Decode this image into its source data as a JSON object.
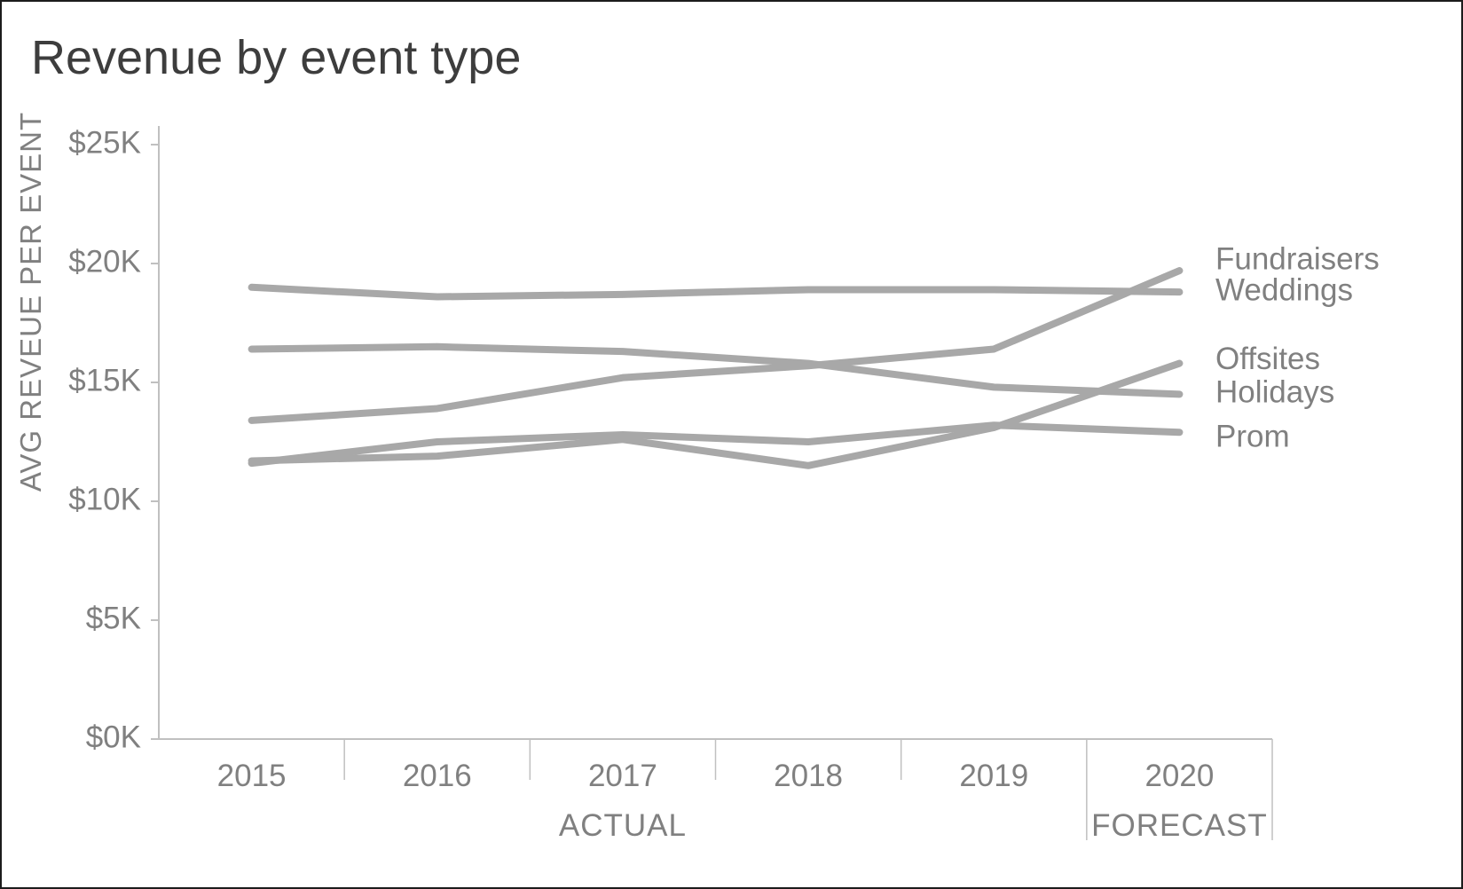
{
  "title": "Revenue by event type",
  "chart_data": {
    "type": "line",
    "title": "Revenue by event type",
    "ylabel": "AVG REVEUE PER EVENT",
    "values_unit": "USD thousands per event",
    "ylim_thousands": [
      0,
      25
    ],
    "y_ticks": [
      {
        "label": "$0K",
        "value": 0
      },
      {
        "label": "$5K",
        "value": 5
      },
      {
        "label": "$10K",
        "value": 10
      },
      {
        "label": "$15K",
        "value": 15
      },
      {
        "label": "$20K",
        "value": 20
      },
      {
        "label": "$25K",
        "value": 25
      }
    ],
    "categories": [
      "2015",
      "2016",
      "2017",
      "2018",
      "2019",
      "2020"
    ],
    "x_group_labels": [
      {
        "label": "ACTUAL",
        "start_index": 0,
        "end_index": 4
      },
      {
        "label": "FORECAST",
        "start_index": 5,
        "end_index": 5
      }
    ],
    "series": [
      {
        "name": "Fundraisers",
        "values": [
          13.4,
          13.9,
          15.2,
          15.7,
          16.4,
          19.7
        ]
      },
      {
        "name": "Weddings",
        "values": [
          19.0,
          18.6,
          18.7,
          18.9,
          18.9,
          18.8
        ]
      },
      {
        "name": "Offsites",
        "values": [
          11.7,
          11.9,
          12.6,
          11.5,
          13.1,
          15.8
        ]
      },
      {
        "name": "Holidays",
        "values": [
          16.4,
          16.5,
          16.3,
          15.8,
          14.8,
          14.5
        ]
      },
      {
        "name": "Prom",
        "values": [
          11.6,
          12.5,
          12.8,
          12.5,
          13.2,
          12.9
        ]
      }
    ],
    "legend_position": "right-end-labels",
    "grid": false
  },
  "colors": {
    "line": "#a8a8a8",
    "axis": "#c0c0c0",
    "axis_text": "#808080",
    "title_text": "#3d3d3d",
    "background": "#ffffff",
    "border": "#1c1c1c"
  }
}
